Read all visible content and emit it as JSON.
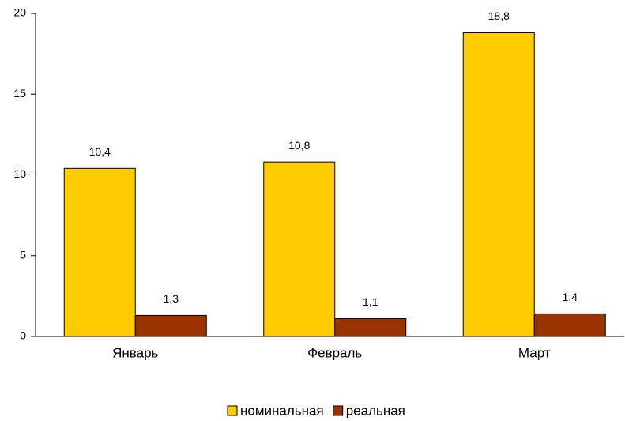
{
  "chart_data": {
    "type": "bar",
    "categories": [
      "Январь",
      "Февраль",
      "Март"
    ],
    "series": [
      {
        "name": "номинальная",
        "color": "#ffcc00",
        "values": [
          10.4,
          10.8,
          18.8
        ],
        "value_labels": [
          "10,4",
          "10,8",
          "18,8"
        ]
      },
      {
        "name": "реальная",
        "color": "#993300",
        "values": [
          1.3,
          1.1,
          1.4
        ],
        "value_labels": [
          "1,3",
          "1,1",
          "1,4"
        ]
      }
    ],
    "ylim": [
      0,
      20
    ],
    "yticks": [
      0,
      5,
      10,
      15,
      20
    ],
    "legend": "bottom"
  }
}
